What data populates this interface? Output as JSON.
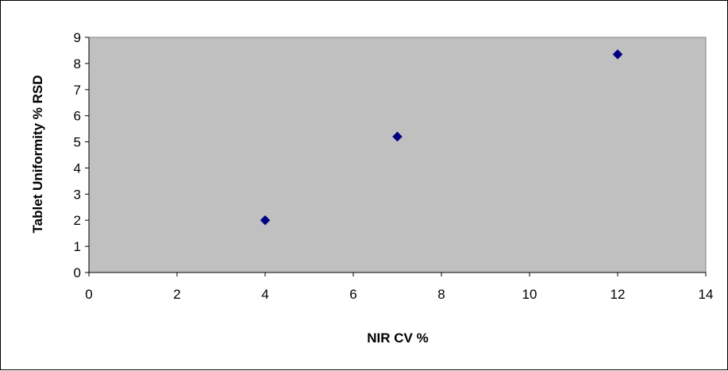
{
  "chart_data": {
    "type": "scatter",
    "title": "",
    "xlabel": "NIR CV %",
    "ylabel": "Tablet Uniformity % RSD",
    "xlim": [
      0,
      14
    ],
    "ylim": [
      0,
      9
    ],
    "xticks": [
      0,
      2,
      4,
      6,
      8,
      10,
      12,
      14
    ],
    "yticks": [
      0,
      1,
      2,
      3,
      4,
      5,
      6,
      7,
      8,
      9
    ],
    "grid": false,
    "legend": "none",
    "marker": "diamond",
    "series": [
      {
        "x": [
          4,
          7,
          12
        ],
        "y": [
          2.0,
          5.2,
          8.35
        ]
      }
    ],
    "colors": {
      "plot_background": "#c0c0c0",
      "marker": "#000080",
      "axis": "#000000",
      "frame": "#000000"
    }
  }
}
